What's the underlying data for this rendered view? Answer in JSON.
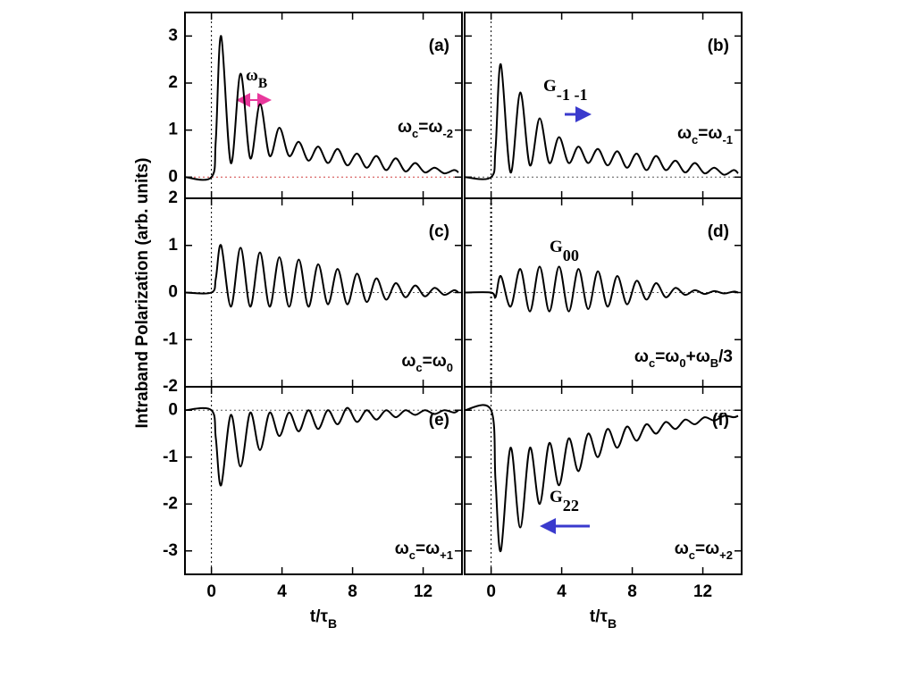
{
  "ylabel": "Intraband Polarization  (arb. units)",
  "chart_data": [
    {
      "type": "line",
      "label": "(a)",
      "color": "#000000",
      "xlim": [
        -1.5,
        14.2
      ],
      "ylim": [
        -0.45,
        3.5
      ],
      "xticks": [
        0,
        4,
        8,
        12
      ],
      "yticks": [
        0,
        1,
        2,
        3
      ],
      "note": [
        {
          "text": "ω"
        },
        {
          "text": "c",
          "sub": true
        },
        {
          "text": "=ω"
        },
        {
          "text": "-2",
          "sub": true
        }
      ],
      "extra": {
        "color": "#e8389c",
        "parts": [
          {
            "text": "ω"
          },
          {
            "text": "B",
            "sub": true
          }
        ]
      },
      "x": [
        -1.5,
        0,
        0.25,
        0.55,
        1.1,
        1.65,
        2.2,
        2.75,
        3.3,
        3.85,
        4.4,
        4.95,
        5.5,
        6.05,
        6.6,
        7.15,
        7.7,
        8.25,
        8.8,
        9.35,
        9.9,
        10.45,
        11,
        11.55,
        12.1,
        12.65,
        13.2,
        13.75,
        14
      ],
      "values": [
        0,
        0,
        0.8,
        3.0,
        0.3,
        2.2,
        0.4,
        1.55,
        0.45,
        1.05,
        0.45,
        0.75,
        0.35,
        0.65,
        0.3,
        0.6,
        0.25,
        0.5,
        0.2,
        0.45,
        0.15,
        0.4,
        0.12,
        0.3,
        0.1,
        0.2,
        0.08,
        0.15,
        0.1
      ]
    },
    {
      "type": "line",
      "label": "(b)",
      "color": "#000000",
      "xlim": [
        -1.5,
        14.2
      ],
      "ylim": [
        -0.45,
        3.5
      ],
      "xticks": [
        0,
        4,
        8,
        12
      ],
      "yticks": [
        0,
        1,
        2,
        3
      ],
      "note": [
        {
          "text": "ω"
        },
        {
          "text": "c",
          "sub": true
        },
        {
          "text": "=ω"
        },
        {
          "text": "-1",
          "sub": true
        }
      ],
      "extra": {
        "color": "#3a3acd",
        "parts": [
          {
            "text": "G"
          },
          {
            "text": "-1 -1",
            "sub": true
          }
        ]
      },
      "x": [
        -1.5,
        0,
        0.25,
        0.55,
        1.1,
        1.65,
        2.2,
        2.75,
        3.3,
        3.85,
        4.4,
        4.95,
        5.5,
        6.05,
        6.6,
        7.15,
        7.7,
        8.25,
        8.8,
        9.35,
        9.9,
        10.45,
        11,
        11.55,
        12.1,
        12.65,
        13.2,
        13.75,
        14
      ],
      "values": [
        0,
        0,
        0.6,
        2.4,
        0.1,
        1.8,
        0.25,
        1.25,
        0.3,
        0.85,
        0.3,
        0.65,
        0.3,
        0.6,
        0.25,
        0.55,
        0.2,
        0.5,
        0.15,
        0.45,
        0.15,
        0.35,
        0.1,
        0.3,
        0.08,
        0.2,
        0.05,
        0.15,
        0.08
      ]
    },
    {
      "type": "line",
      "label": "(c)",
      "color": "#000000",
      "xlim": [
        -1.5,
        14.2
      ],
      "ylim": [
        -2,
        2
      ],
      "xticks": [
        0,
        4,
        8,
        12
      ],
      "yticks": [
        -2,
        -1,
        0,
        1,
        2
      ],
      "note": [
        {
          "text": "ω"
        },
        {
          "text": "c",
          "sub": true
        },
        {
          "text": "=ω"
        },
        {
          "text": "0",
          "sub": true
        }
      ],
      "x": [
        -1.5,
        0,
        0.25,
        0.55,
        1.1,
        1.65,
        2.2,
        2.75,
        3.3,
        3.85,
        4.4,
        4.95,
        5.5,
        6.05,
        6.6,
        7.15,
        7.7,
        8.25,
        8.8,
        9.35,
        9.9,
        10.45,
        11,
        11.55,
        12.1,
        12.65,
        13.2,
        13.75,
        14
      ],
      "values": [
        0,
        0,
        0.3,
        1.0,
        -0.3,
        0.95,
        -0.3,
        0.85,
        -0.3,
        0.75,
        -0.3,
        0.7,
        -0.3,
        0.6,
        -0.25,
        0.5,
        -0.25,
        0.4,
        -0.2,
        0.3,
        -0.15,
        0.2,
        -0.1,
        0.15,
        -0.08,
        0.1,
        -0.05,
        0.05,
        0
      ]
    },
    {
      "type": "line",
      "label": "(d)",
      "color": "#000000",
      "xlim": [
        -1.5,
        14.2
      ],
      "ylim": [
        -2,
        2
      ],
      "xticks": [
        0,
        4,
        8,
        12
      ],
      "yticks": [
        -2,
        -1,
        0,
        1,
        2
      ],
      "note": [
        {
          "text": "ω"
        },
        {
          "text": "c",
          "sub": true
        },
        {
          "text": "=ω"
        },
        {
          "text": "0",
          "sub": true
        },
        {
          "text": "+ω"
        },
        {
          "text": "B",
          "sub": true
        },
        {
          "text": "/3"
        }
      ],
      "extra": {
        "color": "#3a3acd",
        "parts": [
          {
            "text": "G"
          },
          {
            "text": "00",
            "sub": true
          }
        ]
      },
      "x": [
        -1.5,
        0,
        0.25,
        0.55,
        1.1,
        1.65,
        2.2,
        2.75,
        3.3,
        3.85,
        4.4,
        4.95,
        5.5,
        6.05,
        6.6,
        7.15,
        7.7,
        8.25,
        8.8,
        9.35,
        9.9,
        10.45,
        11,
        11.55,
        12.1,
        12.65,
        13.2,
        13.75,
        14
      ],
      "values": [
        0,
        0,
        -0.1,
        0.35,
        -0.3,
        0.5,
        -0.4,
        0.55,
        -0.4,
        0.55,
        -0.4,
        0.5,
        -0.35,
        0.45,
        -0.3,
        0.35,
        -0.25,
        0.25,
        -0.15,
        0.2,
        -0.1,
        0.1,
        -0.05,
        0.05,
        -0.03,
        0.03,
        -0.02,
        0.02,
        0
      ]
    },
    {
      "type": "line",
      "label": "(e)",
      "color": "#000000",
      "xlim": [
        -1.5,
        14.2
      ],
      "ylim": [
        -3.5,
        0.5
      ],
      "xticks": [
        0,
        4,
        8,
        12
      ],
      "yticks": [
        -3,
        -2,
        -1,
        0
      ],
      "xlabel": [
        {
          "text": "t/τ"
        },
        {
          "text": "B",
          "sub": true
        }
      ],
      "note": [
        {
          "text": "ω"
        },
        {
          "text": "c",
          "sub": true
        },
        {
          "text": "=ω"
        },
        {
          "text": "+1",
          "sub": true
        }
      ],
      "x": [
        -1.5,
        0,
        0.25,
        0.55,
        1.1,
        1.65,
        2.2,
        2.75,
        3.3,
        3.85,
        4.4,
        4.95,
        5.5,
        6.05,
        6.6,
        7.15,
        7.7,
        8.25,
        8.8,
        9.35,
        9.9,
        10.45,
        11,
        11.55,
        12.1,
        12.65,
        13.2,
        13.75,
        14
      ],
      "values": [
        0,
        0,
        -0.6,
        -1.6,
        -0.1,
        -1.2,
        -0.05,
        -0.85,
        -0.05,
        -0.55,
        -0.05,
        -0.45,
        0,
        -0.4,
        0,
        -0.3,
        0.05,
        -0.25,
        0,
        -0.2,
        0,
        -0.15,
        0,
        -0.1,
        0,
        -0.08,
        0,
        -0.05,
        0
      ]
    },
    {
      "type": "line",
      "label": "(f)",
      "color": "#000000",
      "xlim": [
        -1.5,
        14.2
      ],
      "ylim": [
        -3.5,
        0.5
      ],
      "xticks": [
        0,
        4,
        8,
        12
      ],
      "yticks": [
        -3,
        -2,
        -1,
        0
      ],
      "xlabel": [
        {
          "text": "t/τ"
        },
        {
          "text": "B",
          "sub": true
        }
      ],
      "note": [
        {
          "text": "ω"
        },
        {
          "text": "c",
          "sub": true
        },
        {
          "text": "=ω"
        },
        {
          "text": "+2",
          "sub": true
        }
      ],
      "extra": {
        "color": "#3a3acd",
        "parts": [
          {
            "text": "G"
          },
          {
            "text": "22",
            "sub": true
          }
        ]
      },
      "x": [
        -1.5,
        0,
        0.25,
        0.55,
        1.1,
        1.65,
        2.2,
        2.75,
        3.3,
        3.85,
        4.4,
        4.95,
        5.5,
        6.05,
        6.6,
        7.15,
        7.7,
        8.25,
        8.8,
        9.35,
        9.9,
        10.45,
        11,
        11.55,
        12.1,
        12.65,
        13.2,
        13.75,
        14
      ],
      "values": [
        0,
        0,
        -1.5,
        -3.0,
        -0.8,
        -2.5,
        -0.8,
        -2.0,
        -0.7,
        -1.6,
        -0.6,
        -1.3,
        -0.5,
        -1.0,
        -0.4,
        -0.8,
        -0.35,
        -0.65,
        -0.3,
        -0.5,
        -0.25,
        -0.4,
        -0.2,
        -0.3,
        -0.15,
        -0.22,
        -0.12,
        -0.15,
        -0.12
      ]
    }
  ]
}
